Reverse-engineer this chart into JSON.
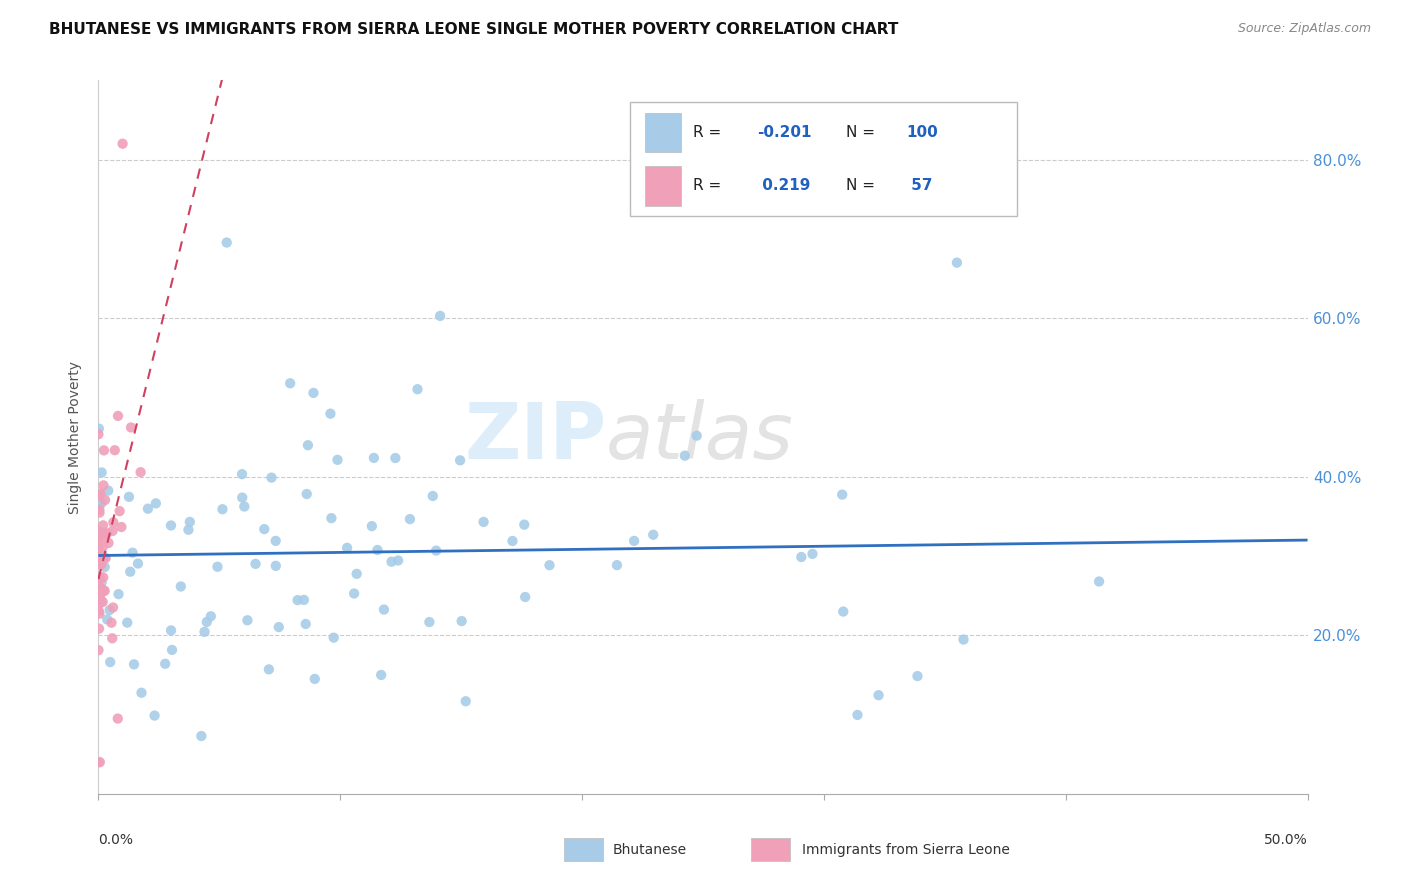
{
  "title": "BHUTANESE VS IMMIGRANTS FROM SIERRA LEONE SINGLE MOTHER POVERTY CORRELATION CHART",
  "source": "Source: ZipAtlas.com",
  "ylabel": "Single Mother Poverty",
  "ylabel_right_ticks": [
    "80.0%",
    "60.0%",
    "40.0%",
    "20.0%"
  ],
  "ylabel_right_vals": [
    0.8,
    0.6,
    0.4,
    0.2
  ],
  "legend_bhutanese": "Bhutanese",
  "legend_sierra": "Immigrants from Sierra Leone",
  "r_bhutanese": "-0.201",
  "n_bhutanese": "100",
  "r_sierra": "0.219",
  "n_sierra": "57",
  "color_bhutanese": "#a8cce8",
  "color_bhutanese_line": "#3070c0",
  "color_sierra": "#f0a0b8",
  "color_sierra_line": "#d04060",
  "xlim": [
    0.0,
    0.5
  ],
  "ylim": [
    0.0,
    0.9
  ]
}
